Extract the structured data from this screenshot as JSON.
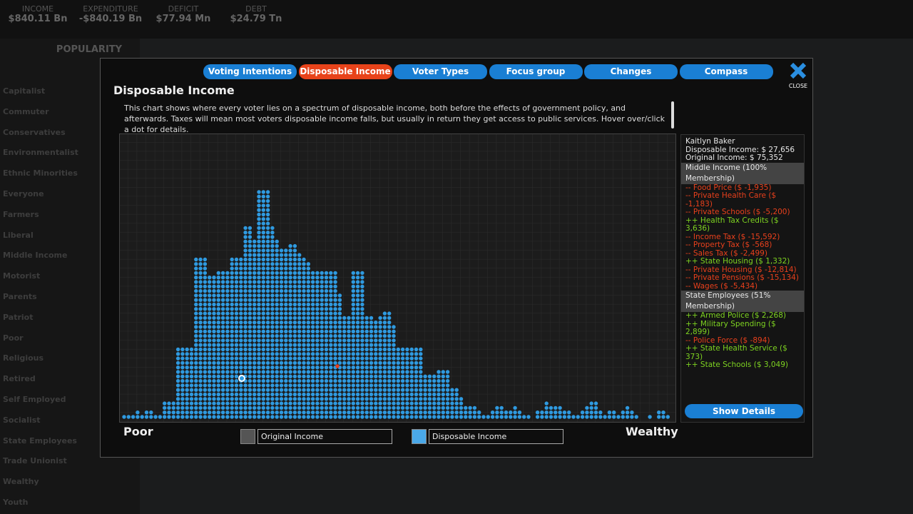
{
  "top_bar": {
    "stats": [
      {
        "label": "INCOME",
        "value": "$840.11 Bn"
      },
      {
        "label": "EXPENDITURE",
        "value": "-$840.19 Bn"
      },
      {
        "label": "DEFICIT",
        "value": "$77.94 Mn"
      },
      {
        "label": "DEBT",
        "value": "$24.79 Tn"
      }
    ]
  },
  "sidebar": {
    "title": "POPULARITY",
    "groups": [
      "Capitalist",
      "Commuter",
      "Conservatives",
      "Environmentalist",
      "Ethnic Minorities",
      "Everyone",
      "Farmers",
      "Liberal",
      "Middle Income",
      "Motorist",
      "Parents",
      "Patriot",
      "Poor",
      "Religious",
      "Retired",
      "Self Employed",
      "Socialist",
      "State Employees",
      "Trade Unionist",
      "Wealthy",
      "Youth"
    ]
  },
  "dialog": {
    "tabs": [
      {
        "label": "Voting Intentions",
        "active": false
      },
      {
        "label": "Disposable Income",
        "active": true
      },
      {
        "label": "Voter Types",
        "active": false
      },
      {
        "label": "Focus group",
        "active": false
      },
      {
        "label": "Changes",
        "active": false
      },
      {
        "label": "Compass",
        "active": false
      }
    ],
    "close": "CLOSE",
    "title": "Disposable Income",
    "description": "This chart shows where every voter lies on a spectrum of disposable income, both before the effects of government policy, and afterwards. Taxes will mean most voters disposable income falls, but usually in return they get access to public services. Hover over/click a dot for details.",
    "chart": {
      "dot_color": "#2f9ae0",
      "column_counts": [
        1,
        1,
        1,
        2,
        1,
        2,
        2,
        1,
        1,
        4,
        4,
        4,
        16,
        16,
        16,
        16,
        36,
        36,
        36,
        32,
        32,
        33,
        33,
        33,
        36,
        36,
        36,
        43,
        43,
        40,
        51,
        51,
        51,
        43,
        40,
        38,
        38,
        39,
        39,
        37,
        36,
        35,
        33,
        33,
        33,
        33,
        33,
        33,
        28,
        23,
        23,
        33,
        33,
        33,
        23,
        23,
        22,
        23,
        24,
        24,
        21,
        16,
        16,
        16,
        16,
        16,
        16,
        10,
        10,
        10,
        11,
        11,
        11,
        7,
        7,
        5,
        3,
        3,
        3,
        2,
        1,
        1,
        2,
        3,
        3,
        2,
        2,
        3,
        2,
        1,
        1,
        0,
        2,
        2,
        4,
        3,
        3,
        3,
        2,
        2,
        1,
        1,
        2,
        3,
        4,
        4,
        2,
        1,
        2,
        2,
        1,
        2,
        3,
        2,
        1,
        0,
        0,
        1,
        0,
        2,
        2,
        1
      ],
      "axis_left": "Poor",
      "axis_right": "Wealthy",
      "legend": [
        {
          "label": "Original Income",
          "color": "#555555"
        },
        {
          "label": "Disposable Income",
          "color": "#4aa8e8"
        }
      ]
    },
    "voter": {
      "lines": [
        {
          "text": "Kaitlyn Baker",
          "color": "#e8e8e8",
          "header": false
        },
        {
          "text": "Disposable Income: $ 27,656",
          "color": "#e8e8e8",
          "header": false
        },
        {
          "text": "Original Income: $ 75,352",
          "color": "#e8e8e8",
          "header": false
        },
        {
          "text": "Middle Income (100% Membership)",
          "color": "#e8e8e8",
          "header": true
        },
        {
          "text": "-- Food Price ($ -1,935)",
          "color": "#e8401c",
          "header": false
        },
        {
          "text": "-- Private Health Care ($ -1,183)",
          "color": "#e8401c",
          "header": false
        },
        {
          "text": "-- Private Schools ($ -5,200)",
          "color": "#e8401c",
          "header": false
        },
        {
          "text": "++ Health Tax Credits ($ 3,636)",
          "color": "#7ed321",
          "header": false
        },
        {
          "text": "-- Income Tax ($ -15,592)",
          "color": "#e8401c",
          "header": false
        },
        {
          "text": "-- Property Tax ($ -568)",
          "color": "#e8401c",
          "header": false
        },
        {
          "text": "-- Sales Tax ($ -2,499)",
          "color": "#e8401c",
          "header": false
        },
        {
          "text": "++ State Housing ($ 1,332)",
          "color": "#7ed321",
          "header": false
        },
        {
          "text": "-- Private Housing ($ -12,814)",
          "color": "#e8401c",
          "header": false
        },
        {
          "text": "-- Private Pensions ($ -15,134)",
          "color": "#e8401c",
          "header": false
        },
        {
          "text": "-- Wages ($ -5,434)",
          "color": "#e8401c",
          "header": false
        },
        {
          "text": "State Employees (51% Membership)",
          "color": "#e8e8e8",
          "header": true
        },
        {
          "text": "++ Armed Police ($ 2,268)",
          "color": "#7ed321",
          "header": false
        },
        {
          "text": "++ Military Spending ($ 2,899)",
          "color": "#7ed321",
          "header": false
        },
        {
          "text": "-- Police Force ($ -894)",
          "color": "#e8401c",
          "header": false
        },
        {
          "text": "++ State Health Service ($ 373)",
          "color": "#7ed321",
          "header": false
        },
        {
          "text": "++ State Schools ($ 3,049)",
          "color": "#7ed321",
          "header": false
        }
      ],
      "button": "Show Details"
    }
  }
}
